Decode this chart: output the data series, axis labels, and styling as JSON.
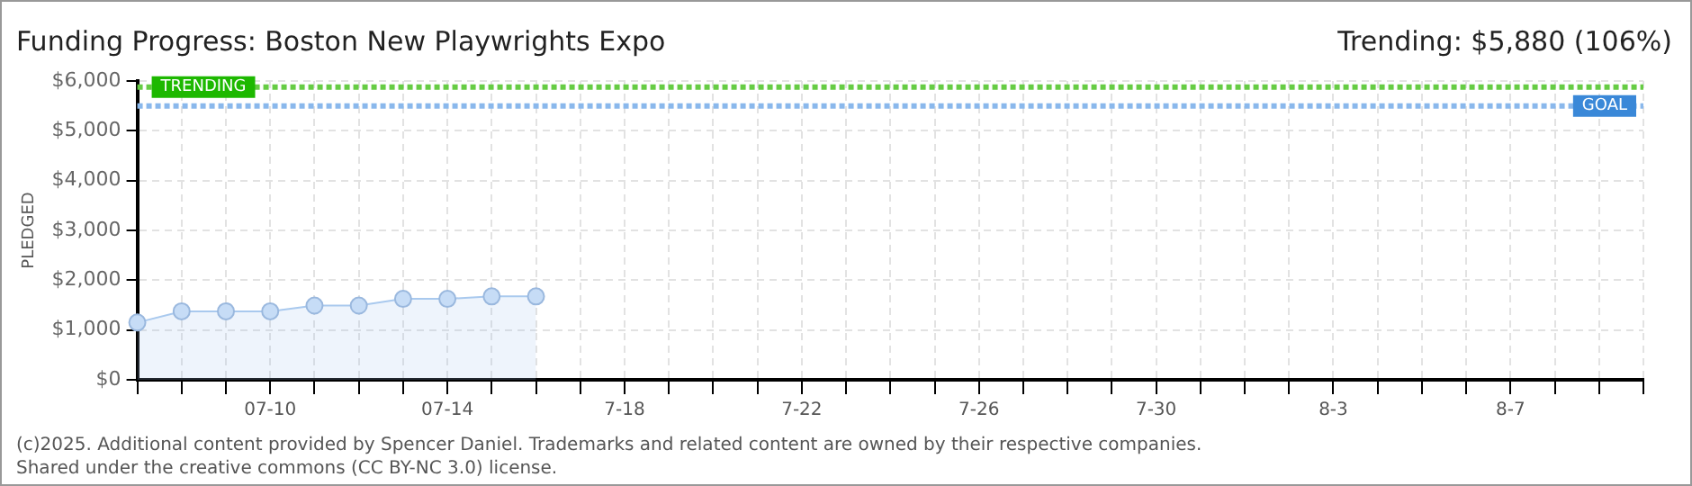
{
  "chart_data": {
    "type": "area",
    "title": "Funding Progress: Boston New Playwrights Expo",
    "ylabel": "PLEDGED",
    "annotations": [
      "Trending: $5,880 (106%)",
      "(c)2025. Additional content provided by Spencer Daniel. Trademarks and related content are owned by their respective companies.",
      "Shared under the creative commons (CC BY-NC 3.0) license."
    ],
    "categories": [
      null,
      null,
      null,
      "07-10",
      null,
      null,
      null,
      "07-14",
      null,
      null,
      null,
      "7-18",
      null,
      null,
      null,
      "7-22",
      null,
      null,
      null,
      "7-26",
      null,
      null,
      null,
      "7-30",
      null,
      null,
      null,
      "8-3",
      null,
      null,
      null,
      "8-7",
      null,
      null,
      null
    ],
    "series": [
      {
        "color": "#a9c9ee",
        "values": [
          1150,
          1375,
          1375,
          1375,
          1490,
          1490,
          1625,
          1625,
          1675,
          1675,
          null,
          null,
          null,
          null,
          null,
          null,
          null,
          null,
          null,
          null,
          null,
          null,
          null,
          null,
          null,
          null,
          null,
          null,
          null,
          null,
          null,
          null,
          null,
          null,
          null
        ]
      }
    ],
    "ylim": [
      0,
      6000
    ],
    "yticks": [
      {
        "value": 0,
        "label": "$0"
      },
      {
        "value": 1000,
        "label": "$1,000"
      },
      {
        "value": 2000,
        "label": "$2,000"
      },
      {
        "value": 3000,
        "label": "$3,000"
      },
      {
        "value": 4000,
        "label": "$4,000"
      },
      {
        "value": 5000,
        "label": "$5,000"
      },
      {
        "value": 6000,
        "label": "$6,000"
      }
    ],
    "ref_lines": [
      {
        "axis": "y",
        "value": 5880,
        "label": "TRENDING",
        "color": "#66cc44",
        "line_style": "dotted"
      },
      {
        "axis": "y",
        "value": 5500,
        "label": "GOAL",
        "color": "#8ab8ec",
        "line_style": "dotted"
      }
    ],
    "grid": true,
    "marker": "circle",
    "line_style": "solid",
    "legend": false
  }
}
